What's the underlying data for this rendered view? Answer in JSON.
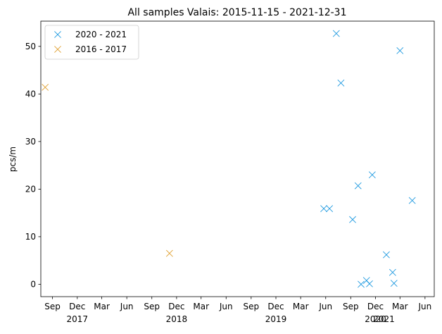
{
  "chart_data": {
    "type": "scatter",
    "title": "All samples Valais: 2015-11-15 - 2021-12-31",
    "xlabel": "",
    "ylabel": "pcs/m",
    "ylim": [
      -2.6,
      55.3
    ],
    "xlim": [
      "2017-07-20",
      "2021-07-05"
    ],
    "grid": false,
    "legend_position": "top-left",
    "y_ticks": [
      0,
      10,
      20,
      30,
      40,
      50
    ],
    "x_ticks": [
      {
        "date": "2017-09-01",
        "label": "Sep"
      },
      {
        "date": "2017-12-01",
        "label": "Dec"
      },
      {
        "date": "2018-03-01",
        "label": "Mar"
      },
      {
        "date": "2018-06-01",
        "label": "Jun"
      },
      {
        "date": "2018-09-01",
        "label": "Sep"
      },
      {
        "date": "2018-12-01",
        "label": "Dec"
      },
      {
        "date": "2019-03-01",
        "label": "Mar"
      },
      {
        "date": "2019-06-01",
        "label": "Jun"
      },
      {
        "date": "2019-09-01",
        "label": "Sep"
      },
      {
        "date": "2019-12-01",
        "label": "Dec"
      },
      {
        "date": "2020-03-01",
        "label": "Mar"
      },
      {
        "date": "2020-06-01",
        "label": "Jun"
      },
      {
        "date": "2020-09-01",
        "label": "Sep"
      },
      {
        "date": "2020-12-01",
        "label": "Dec"
      },
      {
        "date": "2021-03-01",
        "label": "Mar"
      },
      {
        "date": "2021-06-01",
        "label": "Jun"
      }
    ],
    "year_labels": [
      {
        "date": "2017-12-01",
        "label": "2017"
      },
      {
        "date": "2018-12-01",
        "label": "2018"
      },
      {
        "date": "2019-12-01",
        "label": "2019"
      },
      {
        "date": "2020-12-01",
        "label": "2020"
      },
      {
        "date": "2021-01-01",
        "label": "2021"
      }
    ],
    "series": [
      {
        "name": "2020 - 2021",
        "color": "#1f9ae0",
        "marker": "x",
        "points": [
          {
            "x": "2020-05-25",
            "y": 15.9
          },
          {
            "x": "2020-06-15",
            "y": 15.9
          },
          {
            "x": "2020-07-10",
            "y": 52.7
          },
          {
            "x": "2020-07-27",
            "y": 42.3
          },
          {
            "x": "2020-09-08",
            "y": 13.6
          },
          {
            "x": "2020-09-28",
            "y": 20.7
          },
          {
            "x": "2020-10-09",
            "y": 0.0
          },
          {
            "x": "2020-10-29",
            "y": 0.8
          },
          {
            "x": "2020-11-09",
            "y": 0.1
          },
          {
            "x": "2020-11-19",
            "y": 23.0
          },
          {
            "x": "2021-01-10",
            "y": 6.2
          },
          {
            "x": "2021-02-02",
            "y": 2.5
          },
          {
            "x": "2021-02-07",
            "y": 0.2
          },
          {
            "x": "2021-03-01",
            "y": 49.1
          },
          {
            "x": "2021-04-15",
            "y": 17.6
          }
        ]
      },
      {
        "name": "2016 - 2017",
        "color": "#e0a030",
        "marker": "x",
        "points": [
          {
            "x": "2017-08-05",
            "y": 41.4
          },
          {
            "x": "2018-11-05",
            "y": 6.5
          }
        ]
      }
    ]
  }
}
